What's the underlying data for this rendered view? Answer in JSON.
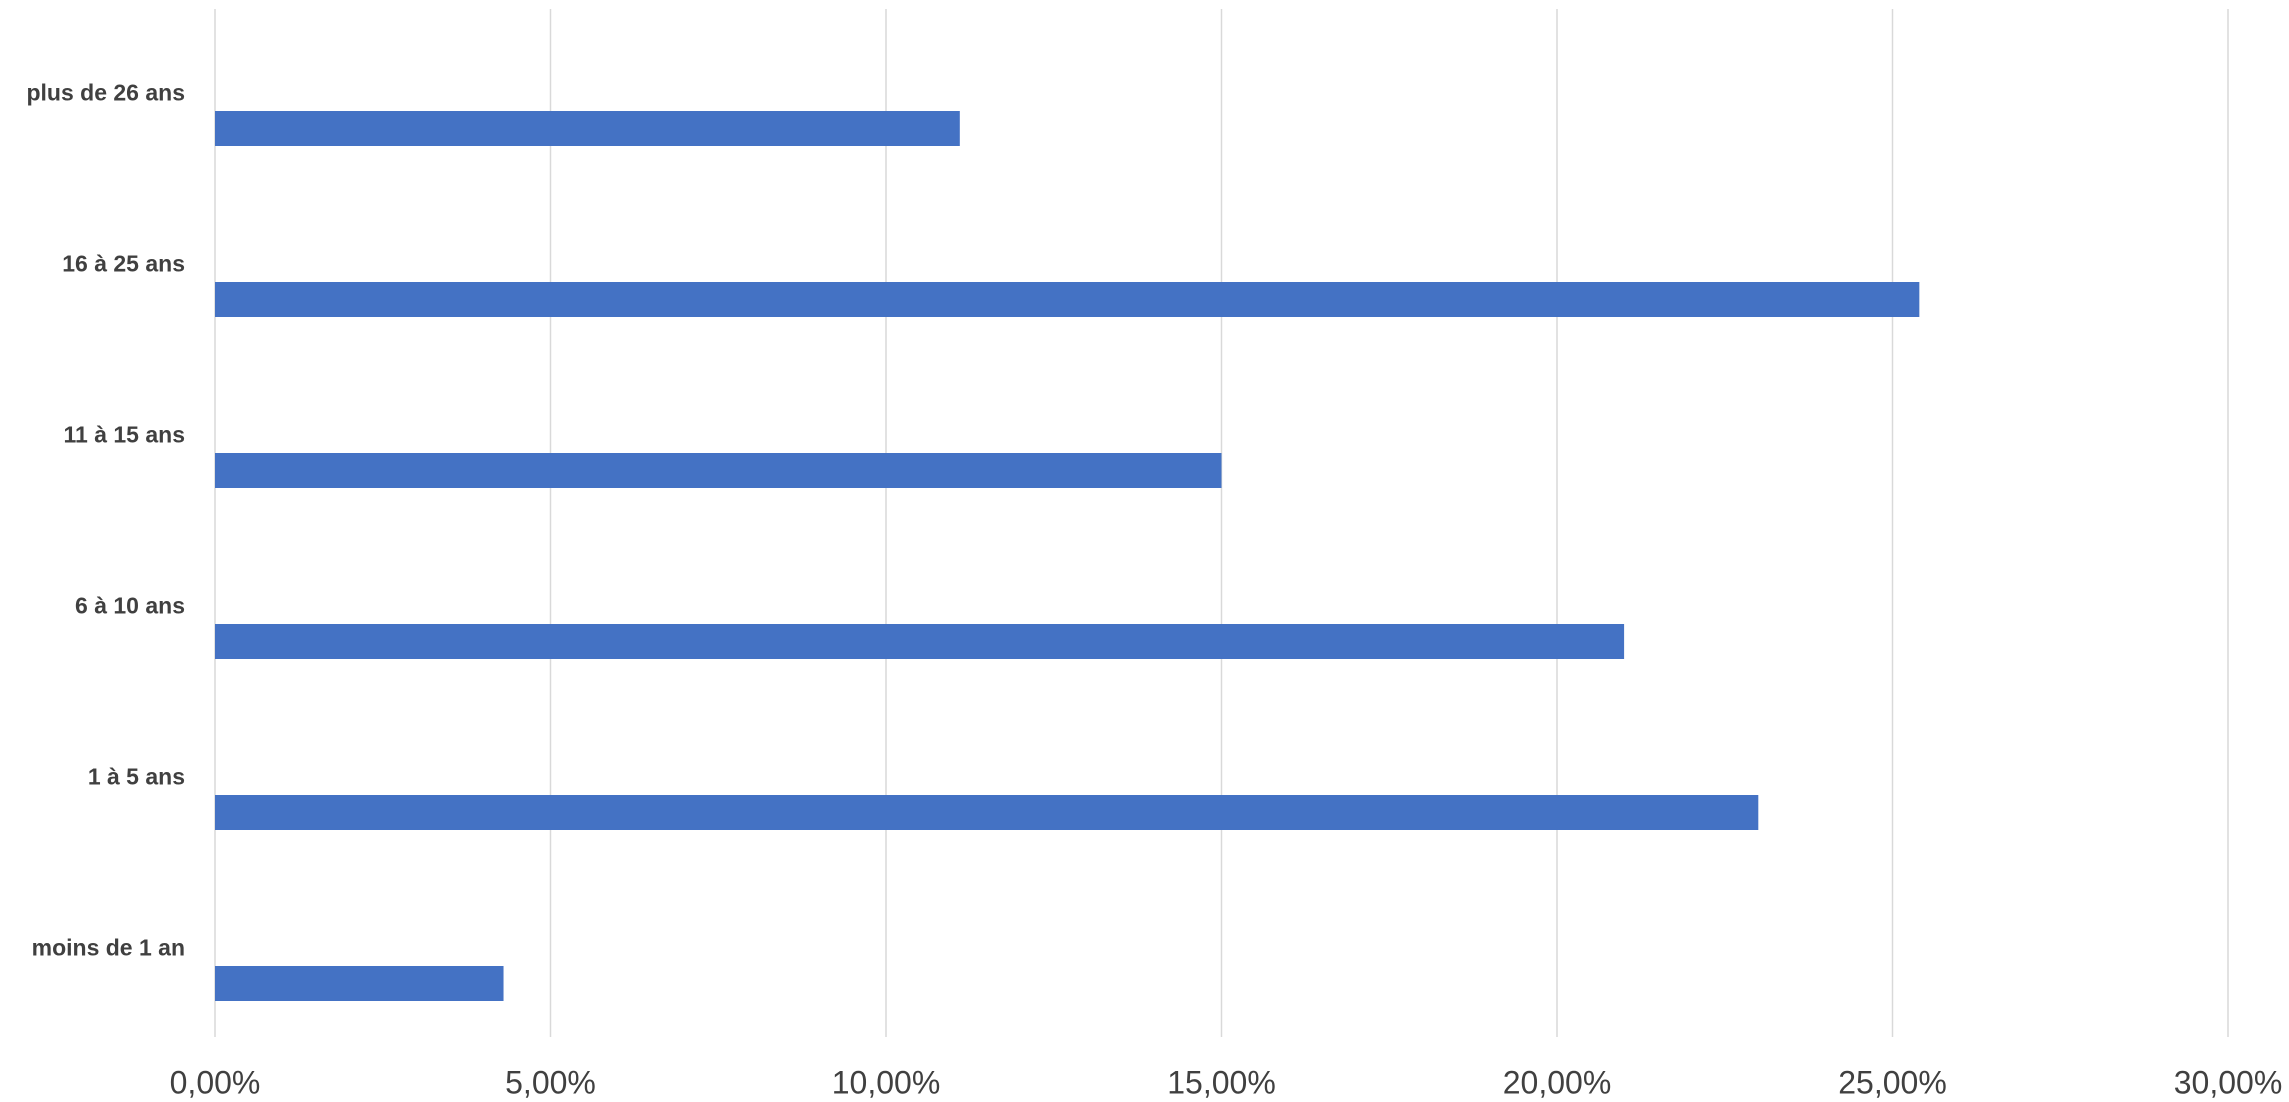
{
  "chart_data": {
    "type": "hbar",
    "categories": [
      "moins de 1 an",
      "1 à 5 ans",
      "6 à 10 ans",
      "11 à 15 ans",
      "16 à 25 ans",
      "plus de 26 ans"
    ],
    "values": [
      4.3,
      23.0,
      21.0,
      15.0,
      25.4,
      11.1
    ],
    "color": "#4472c4",
    "xlim": [
      0,
      30
    ],
    "xticks": [
      {
        "value": 0,
        "label": "0,00%"
      },
      {
        "value": 5,
        "label": "5,00%"
      },
      {
        "value": 10,
        "label": "10,00%"
      },
      {
        "value": 15,
        "label": "15,00%"
      },
      {
        "value": 20,
        "label": "20,00%"
      },
      {
        "value": 25,
        "label": "25,00%"
      },
      {
        "value": 30,
        "label": "30,00%"
      }
    ],
    "grid": true
  }
}
